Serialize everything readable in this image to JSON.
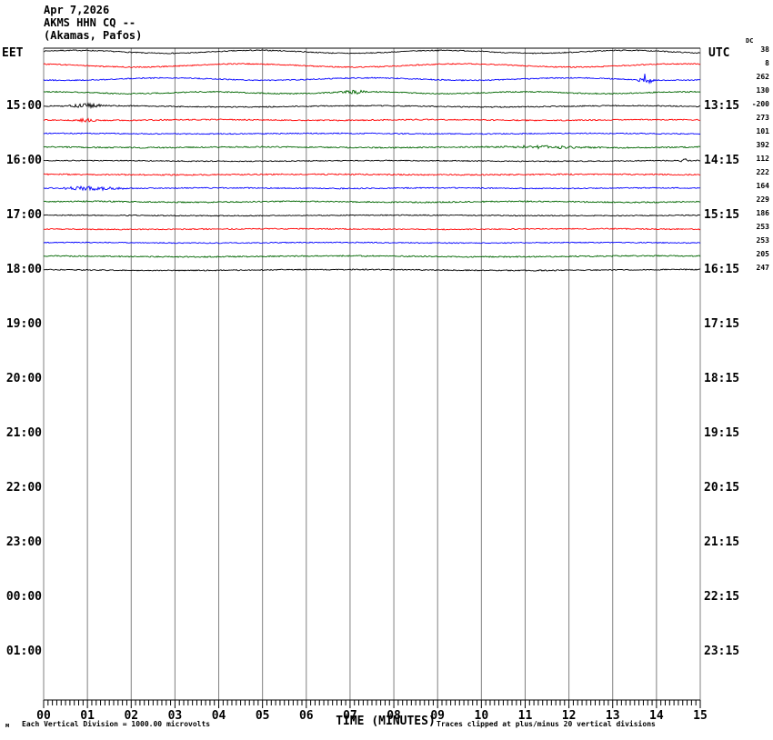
{
  "header": {
    "date": "Apr 7,2026",
    "station": "AKMS HHN CQ --",
    "location": "(Akamas, Pafos)"
  },
  "axes": {
    "left_label": "EET",
    "right_label": "UTC",
    "dc_header": "DC",
    "x_title": "TIME (MINUTES)"
  },
  "footer": {
    "corner_mark": "м",
    "left_note": "Each Vertical Division = 1000.00 microvolts",
    "right_note": "Traces clipped at plus/minus 20 vertical divisions"
  },
  "chart_data": {
    "type": "line",
    "subtype": "helicorder-seismogram",
    "title": "AKMS HHN CQ -- (Akamas, Pafos) Apr 7,2026",
    "xlabel": "TIME (MINUTES)",
    "x_range": [
      0,
      15
    ],
    "x_tick_labels": [
      "00",
      "01",
      "02",
      "03",
      "04",
      "05",
      "06",
      "07",
      "08",
      "09",
      "10",
      "11",
      "12",
      "13",
      "14",
      "15"
    ],
    "x_minor_ticks_per_major": 10,
    "grid": "vertical-gray-lines",
    "gridline_color": "#808080",
    "frame_color": "#000000",
    "rows_per_hour": 4,
    "minutes_per_row": 15,
    "left_axis_times_eet": [
      "15:00",
      "16:00",
      "17:00",
      "18:00",
      "19:00",
      "20:00",
      "21:00",
      "22:00",
      "23:00",
      "00:00",
      "01:00"
    ],
    "right_axis_times_utc": [
      "13:15",
      "14:15",
      "15:15",
      "16:15",
      "17:15",
      "18:15",
      "19:15",
      "20:15",
      "21:15",
      "22:15",
      "23:15"
    ],
    "trace_color_cycle": [
      "#000000",
      "#ff0000",
      "#0000ff",
      "#006600"
    ],
    "traces": [
      {
        "row": 0,
        "color_name": "black",
        "color": "#000000",
        "dc_offset": 38,
        "noise": 0.55,
        "wander": {
          "amp": 1.6,
          "period": 4.2,
          "phase": 0.5
        },
        "events": []
      },
      {
        "row": 1,
        "color_name": "red",
        "color": "#ff0000",
        "dc_offset": 8,
        "noise": 0.6,
        "wander": {
          "amp": 1.8,
          "period": 5.0,
          "phase": 2.1
        },
        "events": []
      },
      {
        "row": 2,
        "color_name": "blue",
        "color": "#0000ff",
        "dc_offset": 262,
        "noise": 0.6,
        "wander": {
          "amp": 1.3,
          "period": 4.6,
          "phase": 4.0
        },
        "events": [
          {
            "m": 13.75,
            "w": 0.12,
            "amp": 6.5
          }
        ]
      },
      {
        "row": 3,
        "color_name": "green",
        "color": "#006600",
        "dc_offset": 130,
        "noise": 0.65,
        "wander": {
          "amp": 1.0,
          "period": 3.6,
          "phase": 1.2
        },
        "events": [
          {
            "m": 7.1,
            "w": 0.25,
            "amp": 1.8
          }
        ]
      },
      {
        "row": 4,
        "color_name": "black",
        "color": "#000000",
        "dc_offset": -200,
        "noise": 0.6,
        "wander": {
          "amp": 0.7,
          "period": 6.0,
          "phase": 0.2
        },
        "events": [
          {
            "m": 1.0,
            "w": 0.35,
            "amp": 2.0
          }
        ]
      },
      {
        "row": 5,
        "color_name": "red",
        "color": "#ff0000",
        "dc_offset": 273,
        "noise": 0.65,
        "wander": {
          "amp": 0.4,
          "period": 5.0,
          "phase": 3.0
        },
        "events": [
          {
            "m": 0.95,
            "w": 0.2,
            "amp": 1.4
          }
        ]
      },
      {
        "row": 6,
        "color_name": "blue",
        "color": "#0000ff",
        "dc_offset": 101,
        "noise": 0.6,
        "wander": {
          "amp": 0.3,
          "period": 6.0,
          "phase": 1.0
        },
        "events": []
      },
      {
        "row": 7,
        "color_name": "green",
        "color": "#006600",
        "dc_offset": 392,
        "noise": 0.7,
        "wander": {
          "amp": 0.4,
          "period": 5.5,
          "phase": 2.2
        },
        "events": [
          {
            "m": 11.4,
            "w": 0.8,
            "amp": 1.2
          }
        ]
      },
      {
        "row": 8,
        "color_name": "black",
        "color": "#000000",
        "dc_offset": 112,
        "noise": 0.55,
        "wander": {
          "amp": 0.4,
          "period": 7.0,
          "phase": 0.8
        },
        "events": [
          {
            "m": 14.65,
            "w": 0.1,
            "amp": 1.6
          }
        ]
      },
      {
        "row": 9,
        "color_name": "red",
        "color": "#ff0000",
        "dc_offset": 222,
        "noise": 0.7,
        "wander": {
          "amp": 0.3,
          "period": 6.5,
          "phase": 1.9
        },
        "events": []
      },
      {
        "row": 10,
        "color_name": "blue",
        "color": "#0000ff",
        "dc_offset": 164,
        "noise": 0.6,
        "wander": {
          "amp": 0.3,
          "period": 5.0,
          "phase": 2.7
        },
        "events": [
          {
            "m": 1.1,
            "w": 0.6,
            "amp": 1.8
          }
        ]
      },
      {
        "row": 11,
        "color_name": "green",
        "color": "#006600",
        "dc_offset": 229,
        "noise": 0.7,
        "wander": {
          "amp": 0.5,
          "period": 5.0,
          "phase": 0.4
        },
        "events": []
      },
      {
        "row": 12,
        "color_name": "black",
        "color": "#000000",
        "dc_offset": 186,
        "noise": 0.55,
        "wander": {
          "amp": 0.3,
          "period": 8.0,
          "phase": 1.5
        },
        "events": []
      },
      {
        "row": 13,
        "color_name": "red",
        "color": "#ff0000",
        "dc_offset": 253,
        "noise": 0.6,
        "wander": {
          "amp": 0.3,
          "period": 7.0,
          "phase": 2.9
        },
        "events": []
      },
      {
        "row": 14,
        "color_name": "blue",
        "color": "#0000ff",
        "dc_offset": 253,
        "noise": 0.55,
        "wander": {
          "amp": 0.3,
          "period": 6.0,
          "phase": 0.9
        },
        "events": []
      },
      {
        "row": 15,
        "color_name": "green",
        "color": "#006600",
        "dc_offset": 205,
        "noise": 0.7,
        "wander": {
          "amp": 0.5,
          "period": 7.0,
          "phase": 1.7
        },
        "events": []
      },
      {
        "row": 16,
        "color_name": "black",
        "color": "#000000",
        "dc_offset": 247,
        "noise": 0.6,
        "wander": {
          "amp": 0.5,
          "period": 8.0,
          "phase": 2.4
        },
        "events": []
      }
    ],
    "notes": {
      "vertical_division": "Each Vertical Division = 1000.00 microvolts",
      "clipping": "Traces clipped at plus/minus 20 vertical divisions"
    }
  }
}
